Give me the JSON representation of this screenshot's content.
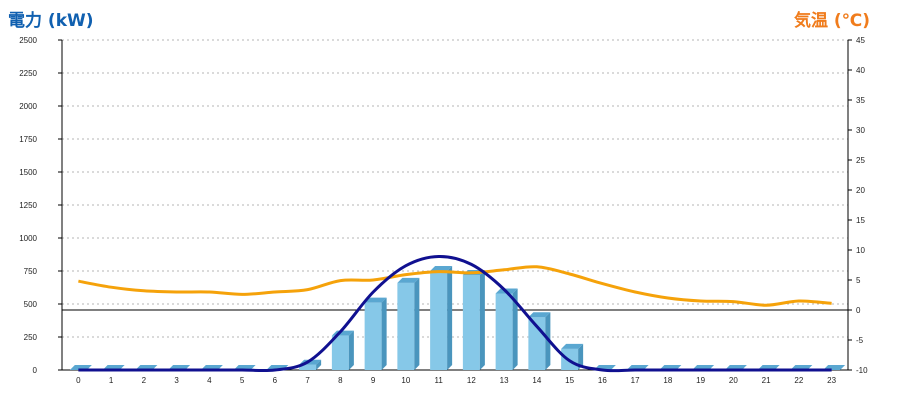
{
  "chart_data": {
    "type": "bar",
    "left_axis_label": "電力 (kW)",
    "right_axis_label": "気温 (℃)",
    "colors": {
      "left_axis_label": "#1060b0",
      "right_axis_label": "#f07c1c",
      "bar_front": "#86c8e8",
      "bar_side": "#4a95bd",
      "bar_top": "#5aa7d1",
      "power_line": "#101090",
      "temperature_line": "#f5a20a",
      "grid": "#b4b4b4"
    },
    "categories": [
      "0",
      "1",
      "2",
      "3",
      "4",
      "5",
      "6",
      "7",
      "8",
      "9",
      "10",
      "11",
      "12",
      "13",
      "14",
      "15",
      "16",
      "17",
      "18",
      "19",
      "20",
      "21",
      "22",
      "23"
    ],
    "x_tick_labels": [
      "0",
      "1",
      "2",
      "3",
      "4",
      "5",
      "6",
      "7",
      "8",
      "9",
      "10",
      "11",
      "12",
      "13",
      "14",
      "15",
      "16",
      "17",
      "18",
      "19",
      "20",
      "21",
      "22",
      "23"
    ],
    "left_axis": {
      "ylim": [
        0,
        2500
      ],
      "ticks": [
        "0",
        "250",
        "500",
        "750",
        "1000",
        "1250",
        "1500",
        "1750",
        "2000",
        "2250",
        "2500"
      ]
    },
    "right_axis": {
      "ylim": [
        -10,
        45
      ],
      "ticks": [
        "-10",
        "-5",
        "0",
        "5",
        "10",
        "15",
        "20",
        "25",
        "30",
        "35",
        "40",
        "45"
      ]
    },
    "grid": true,
    "series": [
      {
        "type": "bar",
        "axis": "left",
        "values": [
          0,
          0,
          0,
          0,
          0,
          0,
          0,
          40,
          260,
          510,
          660,
          750,
          720,
          580,
          400,
          160,
          0,
          0,
          0,
          0,
          0,
          0,
          0,
          0
        ]
      },
      {
        "type": "line",
        "axis": "left",
        "values": [
          0,
          0,
          0,
          0,
          0,
          0,
          0,
          60,
          290,
          590,
          790,
          860,
          800,
          610,
          330,
          70,
          0,
          0,
          0,
          0,
          0,
          0,
          0,
          0
        ]
      },
      {
        "type": "line",
        "axis": "right",
        "values": [
          4.8,
          3.8,
          3.2,
          3.0,
          3.0,
          2.6,
          3.0,
          3.4,
          4.9,
          5.0,
          5.9,
          6.4,
          6.2,
          6.7,
          7.2,
          6.0,
          4.4,
          3.0,
          2.0,
          1.5,
          1.4,
          0.8,
          1.5,
          1.1
        ]
      }
    ]
  }
}
